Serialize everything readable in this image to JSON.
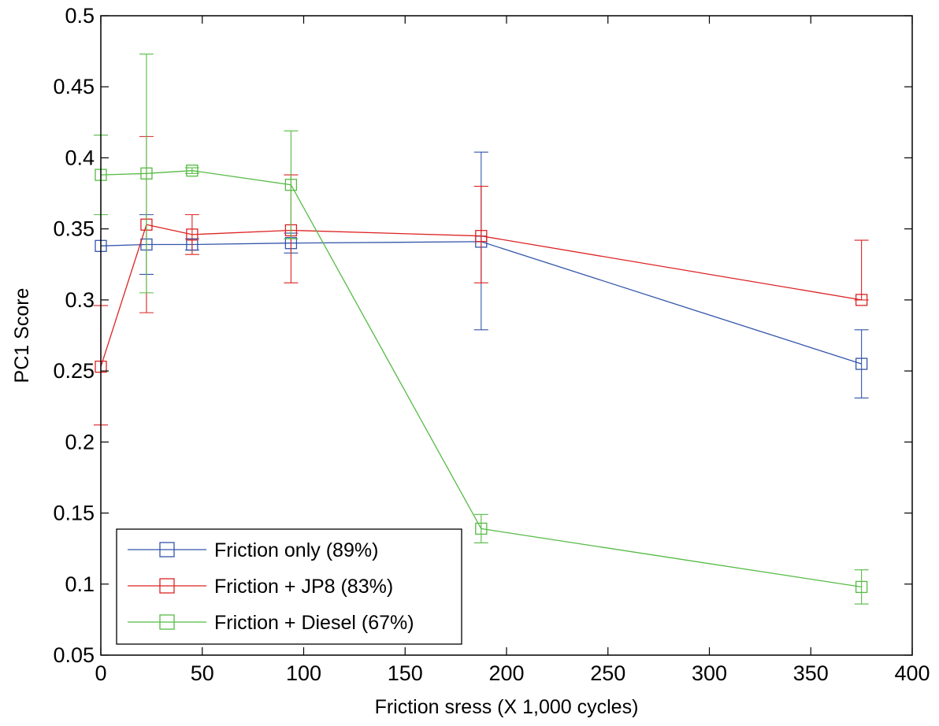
{
  "chart_data": {
    "type": "line",
    "title": "",
    "xlabel": "Friction sress (X 1,000 cycles)",
    "ylabel": "PC1 Score",
    "xlim": [
      0,
      400
    ],
    "ylim": [
      0.05,
      0.5
    ],
    "xticks": [
      0,
      50,
      100,
      150,
      200,
      250,
      300,
      350,
      400
    ],
    "yticks": [
      0.05,
      0.1,
      0.15,
      0.2,
      0.25,
      0.3,
      0.35,
      0.4,
      0.45,
      0.5
    ],
    "xtick_labels": [
      "0",
      "50",
      "100",
      "150",
      "200",
      "250",
      "300",
      "350",
      "400"
    ],
    "ytick_labels": [
      "0.05",
      "0.1",
      "0.15",
      "0.2",
      "0.25",
      "0.3",
      "0.35",
      "0.4",
      "0.45",
      "0.5"
    ],
    "grid": false,
    "legend_position": "bottom-left",
    "marker": "square",
    "series": [
      {
        "name": "Friction only (89%)",
        "color": "#3355aa",
        "x": [
          0,
          22.5,
          45,
          93.75,
          187.5,
          375
        ],
        "y": [
          0.338,
          0.339,
          0.339,
          0.34,
          0.341,
          0.255
        ],
        "err_low": [
          0.338,
          0.318,
          0.335,
          0.333,
          0.279,
          0.231
        ],
        "err_high": [
          0.338,
          0.36,
          0.343,
          0.347,
          0.404,
          0.279
        ]
      },
      {
        "name": "Friction + JP8 (83%)",
        "color": "#dd2222",
        "x": [
          0,
          22.5,
          45,
          93.75,
          187.5,
          375
        ],
        "y": [
          0.253,
          0.353,
          0.346,
          0.349,
          0.345,
          0.3
        ],
        "err_low": [
          0.212,
          0.291,
          0.332,
          0.312,
          0.312,
          0.3
        ],
        "err_high": [
          0.296,
          0.415,
          0.36,
          0.388,
          0.38,
          0.342
        ]
      },
      {
        "name": "Friction + Diesel (67%)",
        "color": "#55bb44",
        "x": [
          0,
          22.5,
          45,
          93.75,
          187.5,
          375
        ],
        "y": [
          0.388,
          0.389,
          0.391,
          0.381,
          0.139,
          0.098
        ],
        "err_low": [
          0.36,
          0.305,
          0.389,
          0.343,
          0.129,
          0.086
        ],
        "err_high": [
          0.416,
          0.473,
          0.393,
          0.419,
          0.149,
          0.11
        ]
      }
    ]
  }
}
